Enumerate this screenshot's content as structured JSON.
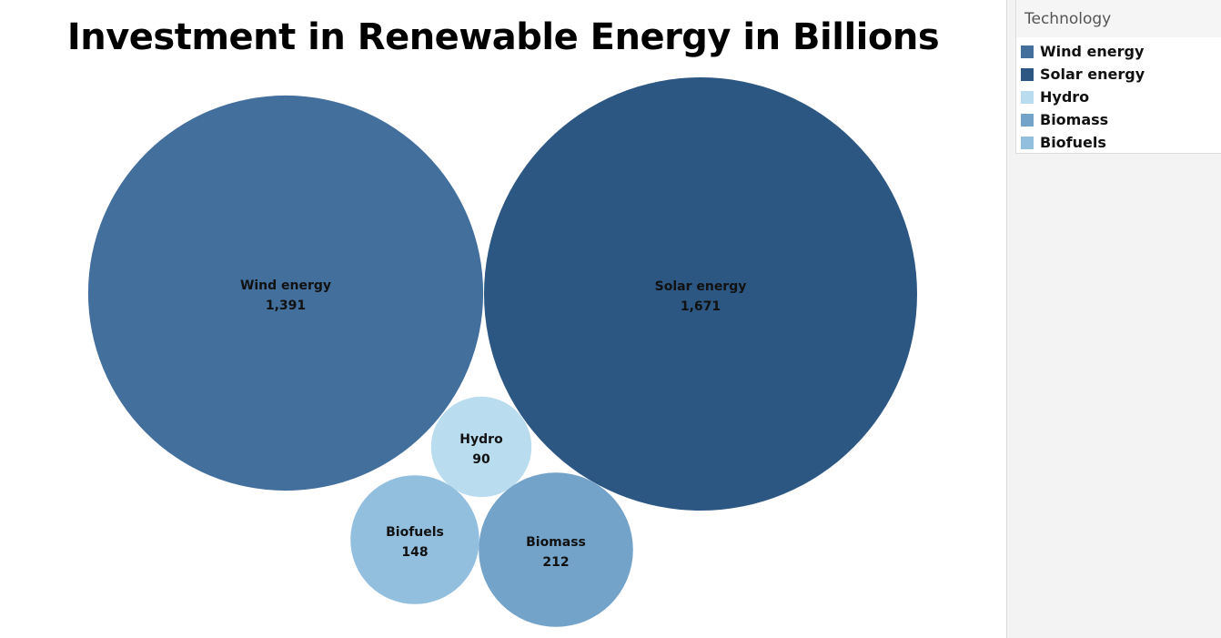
{
  "chart_data": {
    "type": "bubble",
    "title": "Investment in Renewable Energy in Billions",
    "legend_title": "Technology",
    "legend_position": "top-right",
    "categories": [
      "Wind energy",
      "Solar energy",
      "Hydro",
      "Biomass",
      "Biofuels"
    ],
    "values": [
      1391,
      1671,
      90,
      212,
      148
    ],
    "value_labels": [
      "1,391",
      "1,671",
      "90",
      "212",
      "148"
    ],
    "colors": [
      "#436f9c",
      "#2c5783",
      "#badcef",
      "#73a3c9",
      "#93bfdf"
    ]
  }
}
